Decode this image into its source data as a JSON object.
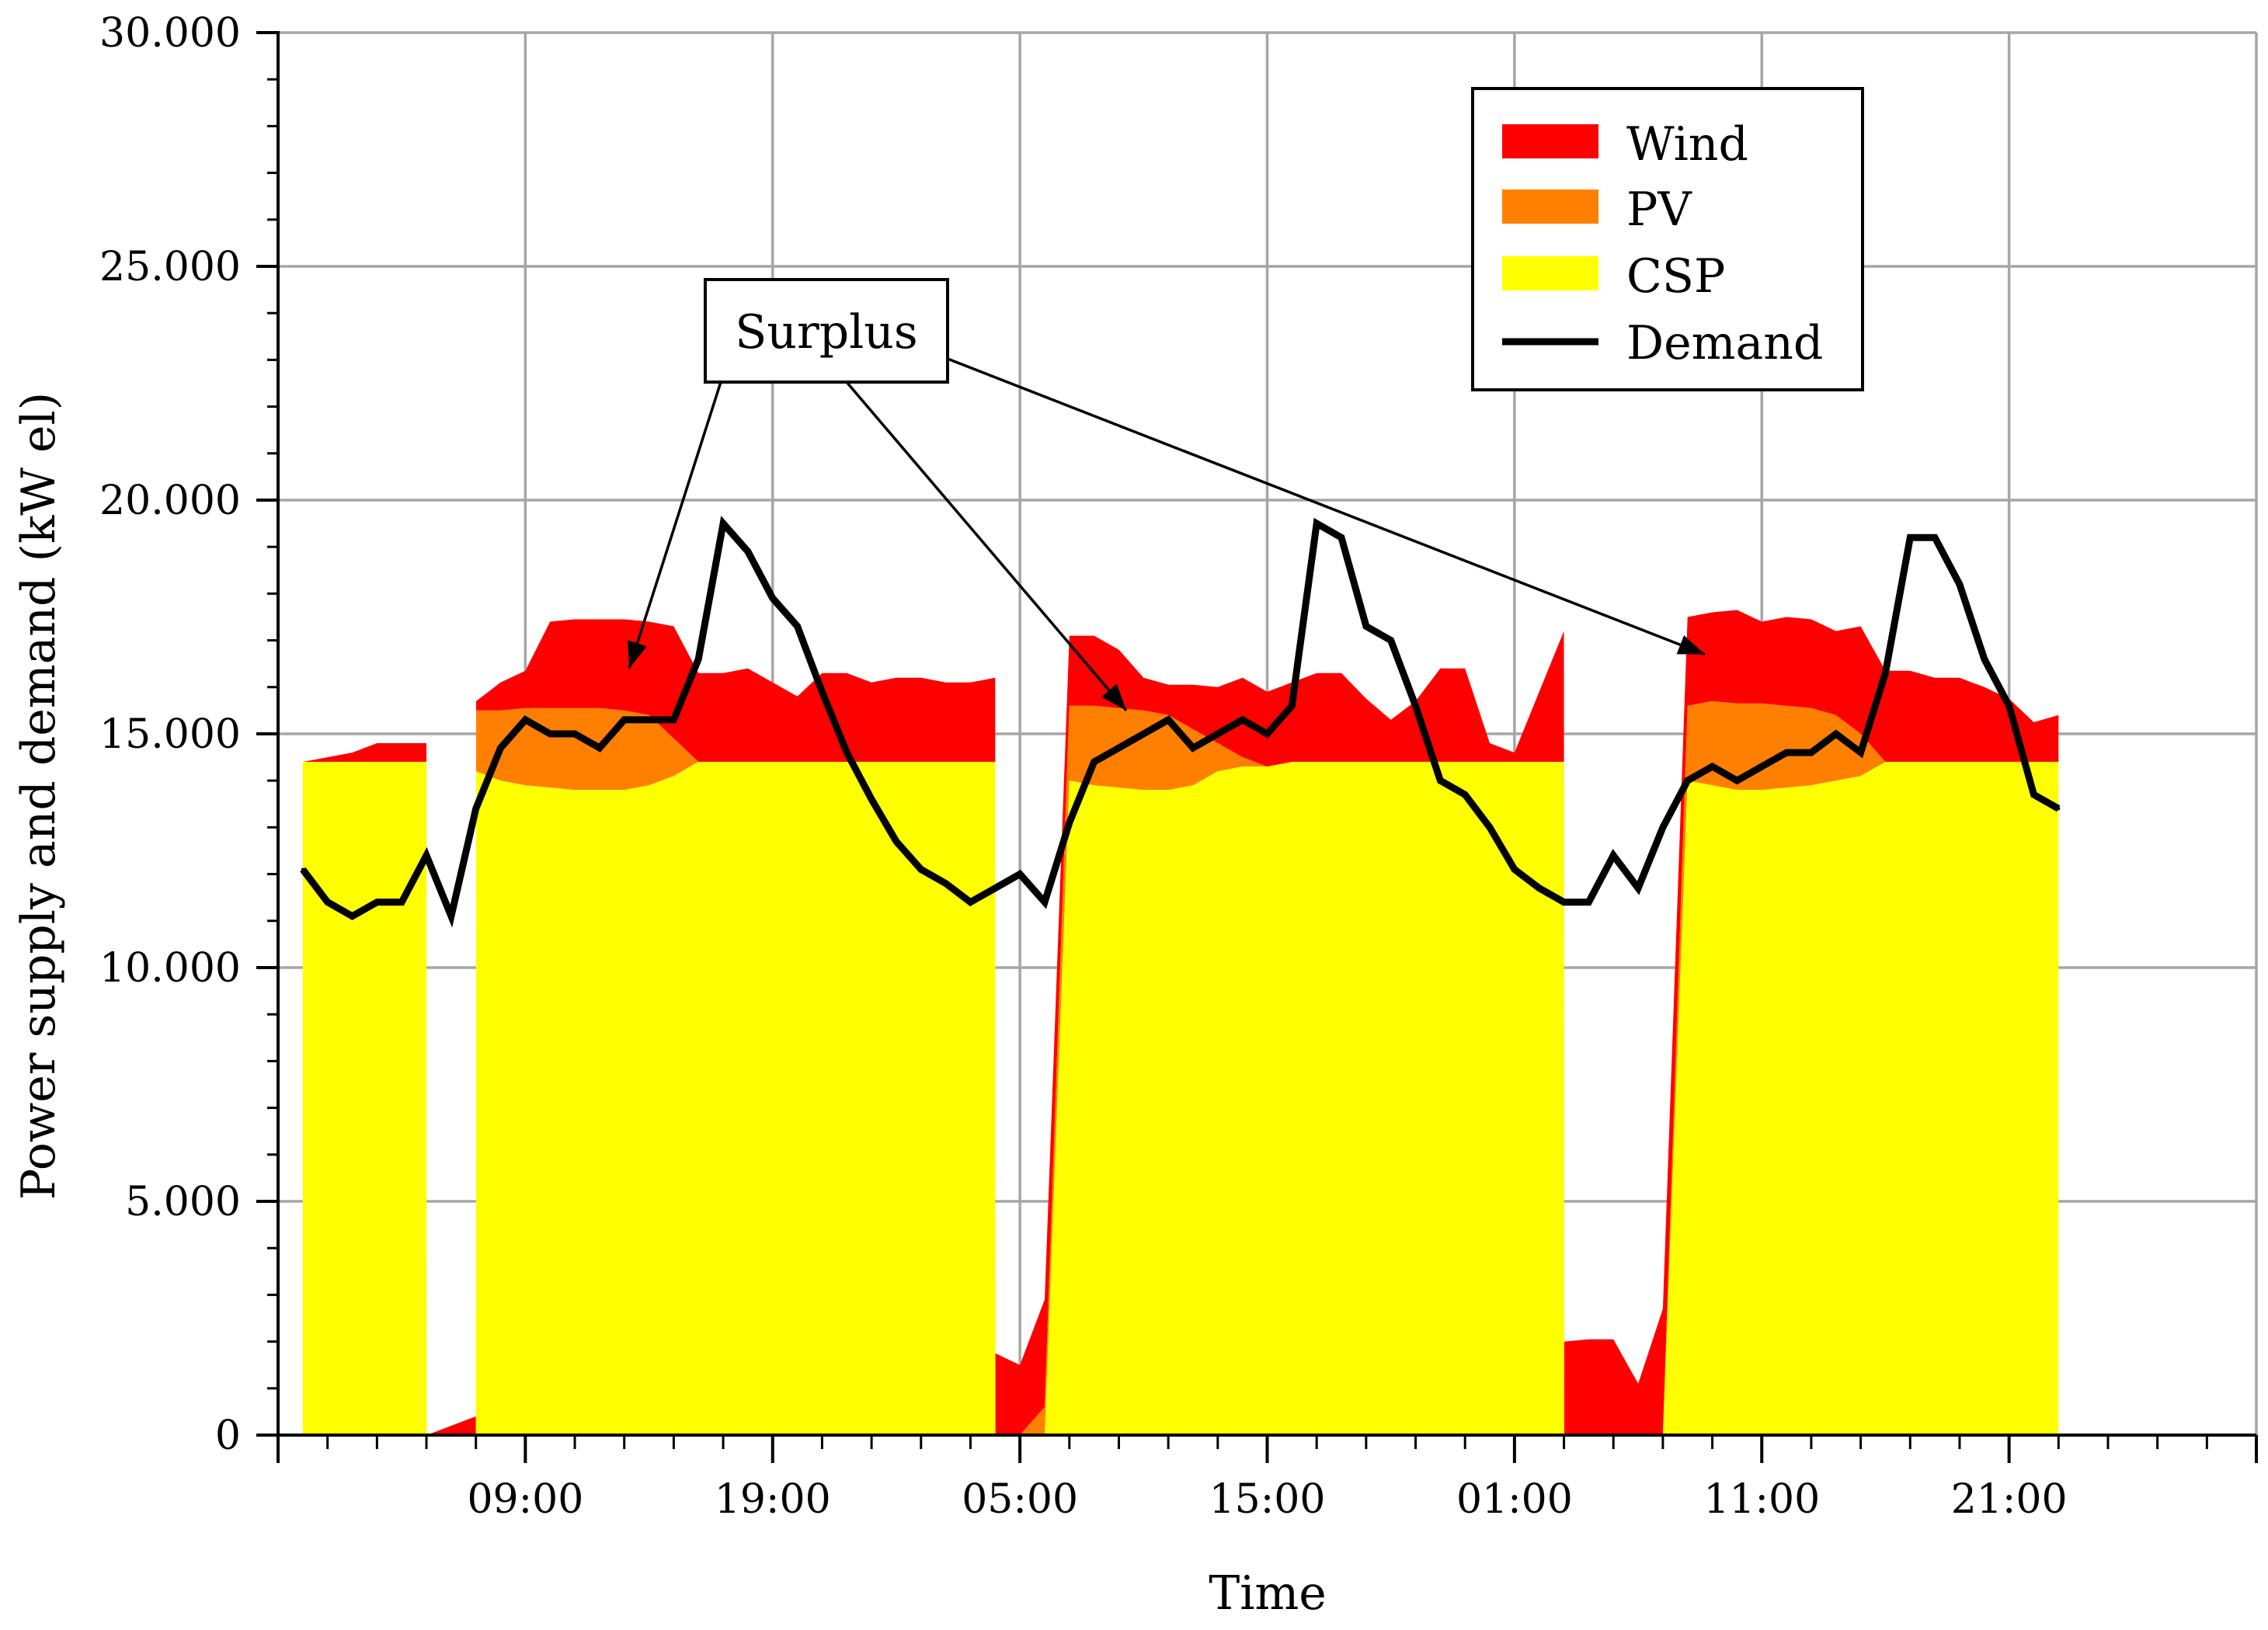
{
  "chart_data": {
    "type": "area",
    "title": "",
    "xlabel": "Time",
    "ylabel": "Power supply and demand (kW el)",
    "x_unit": "hours from first sample",
    "xlim": [
      -1,
      79
    ],
    "ylim": [
      0,
      30000
    ],
    "y_ticks": [
      0,
      5000,
      10000,
      15000,
      20000,
      25000,
      30000
    ],
    "y_tick_labels": [
      "0",
      "5.000",
      "10.000",
      "15.000",
      "20.000",
      "25.000",
      "30.000"
    ],
    "x_major_ticks": [
      9,
      19,
      29,
      39,
      49,
      59,
      69
    ],
    "x_tick_labels": [
      "09:00",
      "19:00",
      "05:00",
      "15:00",
      "01:00",
      "11:00",
      "21:00"
    ],
    "grid": true,
    "legend_position": "top-right",
    "colors": {
      "wind": "#ff0000",
      "pv": "#ff8000",
      "csp": "#ffff00",
      "demand": "#000000",
      "grid": "#a6a6a6"
    },
    "series": [
      {
        "name": "CSP",
        "kind": "stacked-area",
        "x": [
          0,
          1,
          2,
          3,
          4,
          5,
          5.01,
          6,
          7,
          7.01,
          8,
          9,
          10,
          11,
          12,
          13,
          14,
          15,
          16,
          17,
          18,
          19,
          20,
          21,
          22,
          23,
          24,
          25,
          26,
          27,
          28,
          28.01,
          29,
          30,
          31,
          32,
          33,
          34,
          35,
          36,
          37,
          38,
          39,
          40,
          41,
          42,
          43,
          44,
          45,
          46,
          47,
          48,
          49,
          50,
          51,
          51.01,
          52,
          53,
          54,
          55,
          56,
          57,
          58,
          59,
          60,
          61,
          62,
          63,
          64,
          65,
          66,
          67,
          68,
          69,
          70,
          71
        ],
        "values": [
          14400,
          14400,
          14400,
          14400,
          14400,
          14400,
          0,
          0,
          0,
          14200,
          14000,
          13900,
          13850,
          13800,
          13800,
          13800,
          13900,
          14100,
          14400,
          14400,
          14400,
          14400,
          14400,
          14400,
          14400,
          14400,
          14400,
          14400,
          14400,
          14400,
          14400,
          0,
          0,
          0,
          14000,
          13900,
          13850,
          13800,
          13800,
          13900,
          14200,
          14300,
          14300,
          14400,
          14400,
          14400,
          14400,
          14400,
          14400,
          14400,
          14400,
          14400,
          14400,
          14400,
          14400,
          0,
          0,
          0,
          0,
          0,
          14000,
          13900,
          13800,
          13800,
          13850,
          13900,
          14000,
          14100,
          14400,
          14400,
          14400,
          14400,
          14400,
          14400,
          14400,
          14400
        ]
      },
      {
        "name": "PV",
        "kind": "stacked-area",
        "x": [
          0,
          1,
          2,
          3,
          4,
          5,
          5.01,
          6,
          7,
          7.01,
          8,
          9,
          10,
          11,
          12,
          13,
          14,
          15,
          16,
          17,
          18,
          19,
          20,
          21,
          22,
          23,
          24,
          25,
          26,
          27,
          28,
          28.01,
          29,
          30,
          31,
          32,
          33,
          34,
          35,
          36,
          37,
          38,
          39,
          40,
          41,
          42,
          43,
          44,
          45,
          46,
          47,
          48,
          49,
          50,
          51,
          51.01,
          52,
          53,
          54,
          55,
          56,
          57,
          58,
          59,
          60,
          61,
          62,
          63,
          64,
          65,
          66,
          67,
          68,
          69,
          70,
          71
        ],
        "values": [
          0,
          0,
          0,
          0,
          0,
          0,
          0,
          0,
          0,
          1300,
          1500,
          1650,
          1700,
          1750,
          1750,
          1700,
          1500,
          800,
          0,
          0,
          0,
          0,
          0,
          0,
          0,
          0,
          0,
          0,
          0,
          0,
          0,
          0,
          0,
          600,
          1600,
          1700,
          1700,
          1700,
          1600,
          1200,
          600,
          200,
          0,
          0,
          0,
          0,
          0,
          0,
          0,
          0,
          0,
          0,
          0,
          0,
          0,
          0,
          0,
          0,
          0,
          0,
          1600,
          1800,
          1850,
          1850,
          1750,
          1650,
          1400,
          900,
          0,
          0,
          0,
          0,
          0,
          0,
          0,
          0
        ]
      },
      {
        "name": "Wind",
        "kind": "stacked-area",
        "x": [
          0,
          1,
          2,
          3,
          4,
          5,
          5.01,
          6,
          7,
          7.01,
          8,
          9,
          10,
          11,
          12,
          13,
          14,
          15,
          16,
          17,
          18,
          19,
          20,
          21,
          22,
          23,
          24,
          25,
          26,
          27,
          28,
          28.01,
          29,
          30,
          31,
          32,
          33,
          34,
          35,
          36,
          37,
          38,
          39,
          40,
          41,
          42,
          43,
          44,
          45,
          46,
          47,
          48,
          49,
          50,
          51,
          51.01,
          52,
          53,
          54,
          55,
          56,
          57,
          58,
          59,
          60,
          61,
          62,
          63,
          64,
          65,
          66,
          67,
          68,
          69,
          70,
          71
        ],
        "values": [
          0,
          100,
          200,
          400,
          400,
          400,
          0,
          200,
          400,
          200,
          600,
          800,
          1850,
          1900,
          1900,
          1950,
          2000,
          2400,
          1900,
          1900,
          2000,
          1700,
          1400,
          1900,
          1900,
          1700,
          1800,
          1800,
          1700,
          1700,
          1800,
          1750,
          1500,
          2300,
          1500,
          1500,
          1250,
          700,
          650,
          950,
          1200,
          1700,
          1600,
          1700,
          1900,
          1900,
          1350,
          900,
          1300,
          2000,
          2000,
          400,
          200,
          1500,
          2800,
          2000,
          2050,
          2050,
          1100,
          2700,
          1900,
          1900,
          2000,
          1750,
          1900,
          1900,
          1800,
          2300,
          1950,
          1950,
          1800,
          1800,
          1600,
          1350,
          850,
          1000
        ]
      },
      {
        "name": "Demand",
        "kind": "line",
        "x": [
          0,
          1,
          2,
          3,
          4,
          5,
          6,
          7,
          8,
          9,
          10,
          11,
          12,
          13,
          14,
          15,
          16,
          17,
          18,
          19,
          20,
          21,
          22,
          23,
          24,
          25,
          26,
          27,
          28,
          29,
          30,
          31,
          32,
          33,
          34,
          35,
          36,
          37,
          38,
          39,
          40,
          41,
          42,
          43,
          44,
          45,
          46,
          47,
          48,
          49,
          50,
          51,
          52,
          53,
          54,
          55,
          56,
          57,
          58,
          59,
          60,
          61,
          62,
          63,
          64,
          65,
          66,
          67,
          68,
          69,
          70,
          71
        ],
        "values": [
          12100,
          11400,
          11100,
          11400,
          11400,
          12400,
          11100,
          13400,
          14700,
          15300,
          15000,
          15000,
          14700,
          15300,
          15300,
          15300,
          16600,
          19500,
          18900,
          17900,
          17300,
          15900,
          14600,
          13600,
          12700,
          12100,
          11800,
          11400,
          11700,
          12000,
          11400,
          13100,
          14400,
          14700,
          15000,
          15300,
          14700,
          15000,
          15300,
          15000,
          15600,
          19500,
          19200,
          17300,
          17000,
          15600,
          14000,
          13700,
          13000,
          12100,
          11700,
          11400,
          11400,
          12400,
          11700,
          13000,
          14000,
          14300,
          14000,
          14300,
          14600,
          14600,
          15000,
          14600,
          16300,
          19200,
          19200,
          18200,
          16600,
          15600,
          13700,
          13400
        ]
      }
    ],
    "annotation": {
      "text": "Surplus",
      "arrow_targets": [
        {
          "x": 13.2,
          "y": 16400
        },
        {
          "x": 33.3,
          "y": 15500
        },
        {
          "x": 56.7,
          "y": 16700
        }
      ]
    }
  },
  "legend": {
    "items": [
      "Wind",
      "PV",
      "CSP",
      "Demand"
    ]
  }
}
